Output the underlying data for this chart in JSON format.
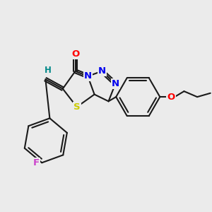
{
  "bg_color": "#ebebeb",
  "bond_color": "#1a1a1a",
  "bond_width": 1.5,
  "atom_colors": {
    "O": "#ff0000",
    "N": "#0000ee",
    "S": "#cccc00",
    "F": "#cc44cc",
    "H": "#008888",
    "C": "#1a1a1a"
  },
  "font_size": 9.5,
  "fig_size": [
    3.0,
    3.0
  ],
  "dpi": 100
}
